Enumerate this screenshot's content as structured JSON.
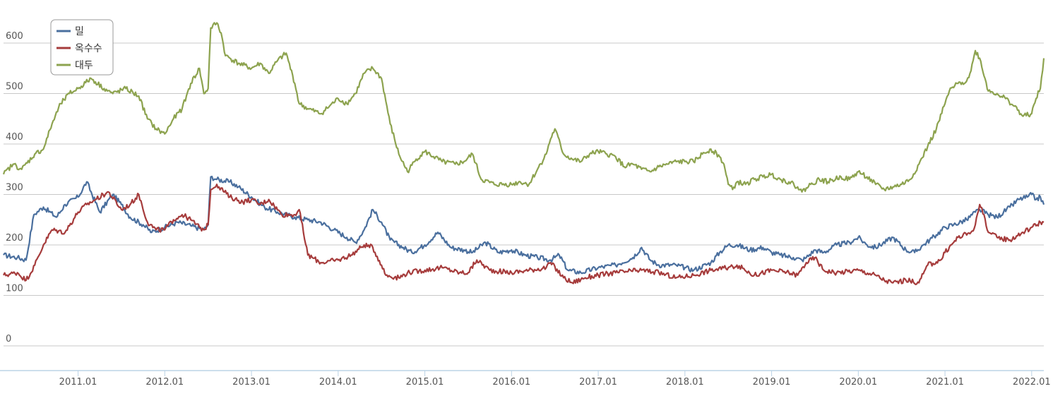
{
  "chart_data": {
    "type": "line",
    "title": "",
    "xlabel": "",
    "ylabel": "",
    "ylim": [
      0,
      650
    ],
    "xlim": [
      2010.14,
      2022.14
    ],
    "y_ticks": [
      0,
      100,
      200,
      300,
      400,
      500,
      600
    ],
    "y_tick_labels": [
      "0",
      "100",
      "200",
      "300",
      "400",
      "500",
      "600"
    ],
    "x_ticks": [
      2011.0,
      2012.0,
      2013.0,
      2014.0,
      2015.0,
      2016.0,
      2017.0,
      2018.0,
      2019.0,
      2020.0,
      2021.0,
      2022.0
    ],
    "x_tick_labels": [
      "2011.01",
      "2012.01",
      "2013.01",
      "2014.01",
      "2015.01",
      "2016.01",
      "2017.01",
      "2018.01",
      "2019.01",
      "2020.01",
      "2021.01",
      "2022.01"
    ],
    "grid": true,
    "legend_position": "top-left",
    "series": [
      {
        "name": "밀",
        "color": "#4a6f9e",
        "x": [
          2010.14,
          2010.3,
          2010.4,
          2010.49,
          2010.6,
          2010.75,
          2010.85,
          2011.0,
          2011.1,
          2011.25,
          2011.4,
          2011.5,
          2011.6,
          2011.75,
          2011.85,
          2012.0,
          2012.15,
          2012.3,
          2012.45,
          2012.5,
          2012.53,
          2012.6,
          2012.75,
          2012.85,
          2013.0,
          2013.15,
          2013.3,
          2013.5,
          2013.65,
          2013.8,
          2013.95,
          2014.1,
          2014.2,
          2014.3,
          2014.4,
          2014.5,
          2014.6,
          2014.75,
          2014.85,
          2015.0,
          2015.15,
          2015.3,
          2015.45,
          2015.55,
          2015.7,
          2015.85,
          2016.0,
          2016.15,
          2016.3,
          2016.45,
          2016.55,
          2016.65,
          2016.8,
          2017.0,
          2017.2,
          2017.4,
          2017.5,
          2017.6,
          2017.7,
          2017.9,
          2018.0,
          2018.1,
          2018.3,
          2018.4,
          2018.5,
          2018.6,
          2018.75,
          2018.9,
          2019.0,
          2019.1,
          2019.25,
          2019.35,
          2019.4,
          2019.5,
          2019.6,
          2019.75,
          2019.9,
          2020.0,
          2020.1,
          2020.2,
          2020.4,
          2020.55,
          2020.65,
          2020.75,
          2020.9,
          2021.0,
          2021.1,
          2021.25,
          2021.35,
          2021.4,
          2021.5,
          2021.6,
          2021.75,
          2021.85,
          2021.95,
          2022.0,
          2022.05,
          2022.1,
          2022.14
        ],
        "values": [
          180,
          175,
          170,
          260,
          275,
          255,
          280,
          295,
          325,
          265,
          300,
          280,
          255,
          240,
          225,
          235,
          245,
          238,
          230,
          240,
          335,
          330,
          325,
          315,
          295,
          275,
          265,
          255,
          250,
          245,
          230,
          215,
          205,
          230,
          270,
          245,
          210,
          195,
          185,
          200,
          225,
          195,
          190,
          185,
          205,
          185,
          190,
          180,
          175,
          170,
          180,
          150,
          145,
          155,
          160,
          175,
          195,
          170,
          160,
          160,
          155,
          150,
          165,
          185,
          200,
          200,
          190,
          195,
          185,
          180,
          175,
          170,
          175,
          190,
          185,
          200,
          205,
          215,
          200,
          195,
          215,
          190,
          185,
          200,
          220,
          235,
          240,
          250,
          265,
          270,
          260,
          255,
          275,
          290,
          295,
          300,
          290,
          295,
          280
        ]
      },
      {
        "name": "옥수수",
        "color": "#a63c3c",
        "x": [
          2010.14,
          2010.3,
          2010.4,
          2010.5,
          2010.6,
          2010.7,
          2010.85,
          2011.0,
          2011.1,
          2011.2,
          2011.35,
          2011.5,
          2011.6,
          2011.7,
          2011.8,
          2011.9,
          2012.0,
          2012.1,
          2012.2,
          2012.3,
          2012.4,
          2012.45,
          2012.5,
          2012.53,
          2012.6,
          2012.75,
          2012.9,
          2013.0,
          2013.1,
          2013.2,
          2013.35,
          2013.5,
          2013.55,
          2013.65,
          2013.8,
          2014.0,
          2014.15,
          2014.3,
          2014.4,
          2014.5,
          2014.55,
          2014.7,
          2014.8,
          2015.0,
          2015.2,
          2015.4,
          2015.5,
          2015.6,
          2015.75,
          2016.0,
          2016.2,
          2016.4,
          2016.45,
          2016.6,
          2016.7,
          2016.85,
          2017.0,
          2017.2,
          2017.5,
          2017.7,
          2017.9,
          2018.1,
          2018.3,
          2018.5,
          2018.6,
          2018.8,
          2019.0,
          2019.2,
          2019.3,
          2019.4,
          2019.5,
          2019.6,
          2019.75,
          2020.0,
          2020.2,
          2020.3,
          2020.4,
          2020.55,
          2020.7,
          2020.8,
          2020.95,
          2021.0,
          2021.15,
          2021.3,
          2021.35,
          2021.4,
          2021.45,
          2021.5,
          2021.6,
          2021.75,
          2021.9,
          2022.0,
          2022.1,
          2022.14
        ],
        "values": [
          140,
          145,
          130,
          160,
          200,
          230,
          225,
          265,
          280,
          290,
          305,
          270,
          280,
          300,
          245,
          230,
          230,
          250,
          260,
          250,
          235,
          230,
          240,
          310,
          320,
          295,
          285,
          290,
          280,
          290,
          260,
          260,
          270,
          180,
          165,
          170,
          180,
          200,
          195,
          160,
          140,
          135,
          145,
          150,
          155,
          145,
          145,
          170,
          150,
          145,
          150,
          155,
          165,
          135,
          125,
          135,
          140,
          145,
          150,
          145,
          135,
          140,
          150,
          155,
          160,
          140,
          150,
          145,
          140,
          165,
          175,
          150,
          145,
          150,
          140,
          130,
          125,
          130,
          125,
          160,
          170,
          185,
          215,
          225,
          240,
          280,
          260,
          225,
          215,
          210,
          225,
          235,
          245,
          245
        ]
      },
      {
        "name": "대두",
        "color": "#8da34f",
        "x": [
          2010.14,
          2010.25,
          2010.35,
          2010.5,
          2010.6,
          2010.7,
          2010.8,
          2010.9,
          2011.0,
          2011.15,
          2011.3,
          2011.4,
          2011.55,
          2011.7,
          2011.8,
          2011.9,
          2012.0,
          2012.1,
          2012.2,
          2012.3,
          2012.4,
          2012.45,
          2012.5,
          2012.53,
          2012.6,
          2012.65,
          2012.7,
          2012.85,
          2013.0,
          2013.1,
          2013.2,
          2013.3,
          2013.4,
          2013.5,
          2013.55,
          2013.65,
          2013.8,
          2013.9,
          2014.0,
          2014.1,
          2014.2,
          2014.3,
          2014.4,
          2014.5,
          2014.6,
          2014.7,
          2014.8,
          2014.9,
          2015.0,
          2015.1,
          2015.2,
          2015.35,
          2015.45,
          2015.55,
          2015.65,
          2015.8,
          2016.0,
          2016.1,
          2016.2,
          2016.3,
          2016.4,
          2016.45,
          2016.5,
          2016.6,
          2016.7,
          2016.8,
          2016.9,
          2017.0,
          2017.1,
          2017.2,
          2017.3,
          2017.4,
          2017.5,
          2017.6,
          2017.7,
          2017.8,
          2017.9,
          2018.0,
          2018.1,
          2018.2,
          2018.3,
          2018.4,
          2018.45,
          2018.5,
          2018.55,
          2018.6,
          2018.7,
          2018.8,
          2018.9,
          2019.0,
          2019.1,
          2019.2,
          2019.3,
          2019.35,
          2019.45,
          2019.55,
          2019.65,
          2019.8,
          2019.9,
          2020.0,
          2020.1,
          2020.2,
          2020.3,
          2020.4,
          2020.5,
          2020.6,
          2020.7,
          2020.8,
          2020.9,
          2021.0,
          2021.05,
          2021.15,
          2021.25,
          2021.3,
          2021.35,
          2021.4,
          2021.5,
          2021.6,
          2021.7,
          2021.8,
          2021.9,
          2022.0,
          2022.05,
          2022.1,
          2022.14
        ],
        "values": [
          340,
          360,
          350,
          380,
          390,
          440,
          480,
          500,
          510,
          530,
          510,
          500,
          510,
          495,
          450,
          430,
          420,
          450,
          470,
          520,
          550,
          500,
          510,
          630,
          640,
          620,
          575,
          560,
          550,
          560,
          540,
          565,
          580,
          520,
          480,
          470,
          460,
          475,
          490,
          480,
          500,
          540,
          550,
          530,
          440,
          380,
          345,
          370,
          385,
          375,
          365,
          360,
          365,
          380,
          330,
          320,
          320,
          325,
          320,
          350,
          380,
          410,
          430,
          380,
          370,
          365,
          380,
          385,
          380,
          375,
          355,
          360,
          350,
          345,
          355,
          360,
          365,
          365,
          365,
          380,
          390,
          375,
          360,
          320,
          310,
          325,
          320,
          330,
          335,
          340,
          330,
          325,
          315,
          305,
          320,
          330,
          325,
          335,
          330,
          345,
          335,
          320,
          310,
          315,
          320,
          330,
          360,
          395,
          430,
          480,
          505,
          520,
          525,
          545,
          585,
          570,
          505,
          500,
          490,
          475,
          455,
          460,
          490,
          510,
          570
        ]
      }
    ]
  }
}
